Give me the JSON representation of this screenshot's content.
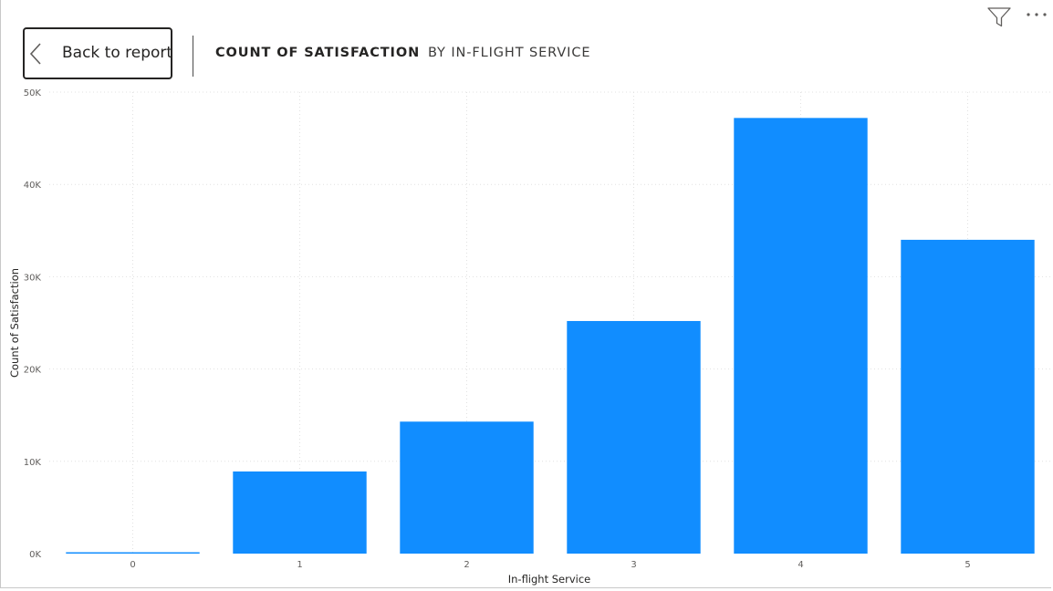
{
  "header": {
    "back_label": "Back to report",
    "title": "COUNT OF SATISFACTION",
    "subtitle": "BY IN-FLIGHT SERVICE"
  },
  "toolbar": {
    "filter_icon": "filter-icon",
    "more_icon": "more-options-icon"
  },
  "chart_data": {
    "type": "bar",
    "categories": [
      "0",
      "1",
      "2",
      "3",
      "4",
      "5"
    ],
    "values": [
      3,
      8900,
      14300,
      25200,
      47200,
      34000
    ],
    "title": "COUNT OF SATISFACTION",
    "subtitle": "BY IN-FLIGHT SERVICE",
    "xlabel": "In-flight Service",
    "ylabel": "Count of Satisfaction",
    "ylim": [
      0,
      50000
    ],
    "yticks": [
      0,
      10000,
      20000,
      30000,
      40000,
      50000
    ],
    "ytick_labels": [
      "0K",
      "10K",
      "20K",
      "30K",
      "40K",
      "50K"
    ],
    "grid": true,
    "bar_color": "#118DFF"
  }
}
